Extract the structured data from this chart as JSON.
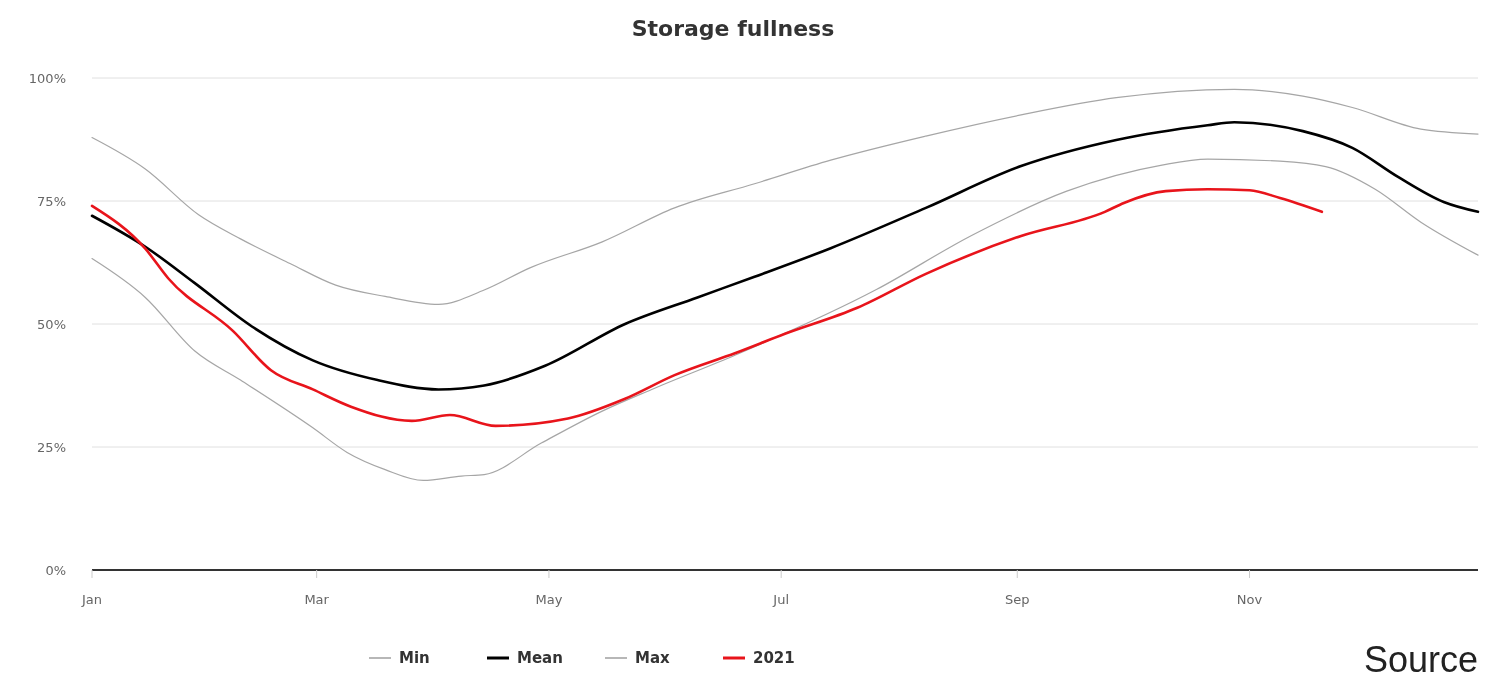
{
  "chart_data": {
    "type": "line",
    "title": "Storage fullness",
    "xlim": [
      "--01-01",
      "--12-31"
    ],
    "xticks": [
      {
        "value": "--01-01",
        "label": "Jan"
      },
      {
        "value": "--03-01",
        "label": "Mar"
      },
      {
        "value": "--05-01",
        "label": "May"
      },
      {
        "value": "--07-01",
        "label": "Jul"
      },
      {
        "value": "--09-01",
        "label": "Sep"
      },
      {
        "value": "--11-01",
        "label": "Nov"
      }
    ],
    "ylim": [
      0,
      100
    ],
    "yticks": [
      {
        "value": 0,
        "label": "0%"
      },
      {
        "value": 25,
        "label": "25%"
      },
      {
        "value": 50,
        "label": "50%"
      },
      {
        "value": 75,
        "label": "75%"
      },
      {
        "value": 100,
        "label": "100%"
      }
    ],
    "grid": "y",
    "legend": "bottom",
    "marker": "none",
    "line_style": "solid",
    "annotations": [
      "Source"
    ],
    "series": [
      {
        "name": "Min",
        "color": "#a6a6a6",
        "x": [
          "--01-01",
          "--01-15",
          "--01-28",
          "--02-09",
          "--02-28",
          "--03-09",
          "--03-19",
          "--03-29",
          "--04-08",
          "--04-14",
          "--04-29",
          "--05-15",
          "--05-28",
          "--06-19",
          "--07-26",
          "--08-20",
          "--09-14",
          "--10-09",
          "--10-21",
          "--11-09",
          "--11-21",
          "--12-04",
          "--12-16",
          "--12-31"
        ],
        "values": [
          63.3,
          55.4,
          44.5,
          38.6,
          28.9,
          23.9,
          20.4,
          18.2,
          19.1,
          19.4,
          25.8,
          32.3,
          36.7,
          43.7,
          57,
          68,
          77,
          82.3,
          83.5,
          83.1,
          82,
          77.4,
          70.7,
          64
        ]
      },
      {
        "name": "Mean",
        "color": "#000000",
        "x": [
          "--01-01",
          "--01-15",
          "--01-28",
          "--02-12",
          "--02-28",
          "--03-17",
          "--04-02",
          "--04-14",
          "--04-30",
          "--05-21",
          "--06-09",
          "--06-24",
          "--07-14",
          "--08-08",
          "--09-02",
          "--09-27",
          "--10-21",
          "--10-28",
          "--11-15",
          "--11-28",
          "--12-10",
          "--12-22",
          "--12-31"
        ],
        "values": [
          72,
          65.7,
          58.3,
          49.5,
          42.6,
          38.6,
          36.7,
          37.5,
          41.5,
          50,
          55.4,
          59.6,
          65.4,
          73.6,
          82.1,
          87.4,
          90.4,
          91,
          89.2,
          85.8,
          79.9,
          74.8,
          72.8
        ]
      },
      {
        "name": "Max",
        "color": "#a6a6a6",
        "x": [
          "--01-01",
          "--01-15",
          "--01-29",
          "--02-09",
          "--02-22",
          "--03-06",
          "--03-19",
          "--04-02",
          "--04-14",
          "--04-26",
          "--05-15",
          "--06-03",
          "--06-24",
          "--07-14",
          "--08-08",
          "--09-02",
          "--09-27",
          "--10-28",
          "--11-15",
          "--11-28",
          "--12-16",
          "--12-31"
        ],
        "values": [
          87.9,
          81.5,
          72.2,
          67.3,
          62.3,
          57.9,
          55.6,
          54,
          56.9,
          61.4,
          66.7,
          73.6,
          78.5,
          83.3,
          88.2,
          92.5,
          96,
          97.7,
          96.3,
          94,
          89.6,
          88.6
        ]
      },
      {
        "name": "2021",
        "color": "#e8141b",
        "x": [
          "--01-01",
          "--01-15",
          "--01-21",
          "--02-07",
          "--02-17",
          "--02-28",
          "--03-10",
          "--03-26",
          "--04-05",
          "--04-17",
          "--05-06",
          "--05-21",
          "--06-03",
          "--06-19",
          "--07-02",
          "--07-21",
          "--08-08",
          "--09-02",
          "--09-24",
          "--09-29",
          "--10-10",
          "--10-21",
          "--11-01",
          "--11-09",
          "--11-20"
        ],
        "values": [
          74,
          65.3,
          59.3,
          48.6,
          40.6,
          36.7,
          33.2,
          30.3,
          31.5,
          29.3,
          30.8,
          34.8,
          39.6,
          44.1,
          48,
          53.3,
          60.2,
          67.9,
          72.8,
          74.6,
          77,
          77.4,
          77.2,
          75.6,
          72.8
        ]
      }
    ]
  }
}
